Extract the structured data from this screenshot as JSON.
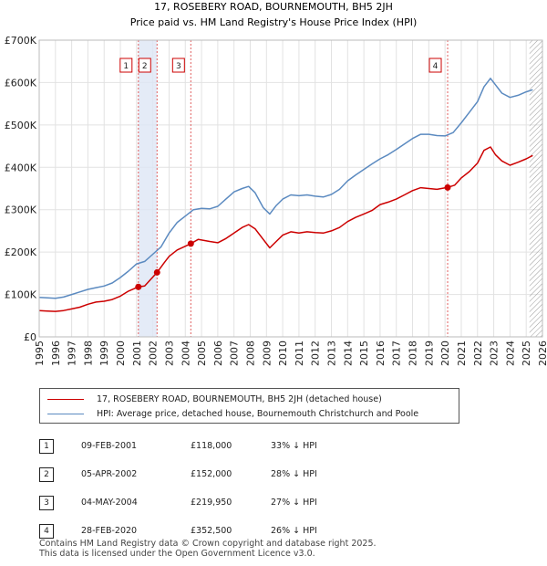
{
  "chart_data": {
    "type": "line",
    "title": "17, ROSEBERY ROAD, BOURNEMOUTH, BH5 2JH",
    "subtitle": "Price paid vs. HM Land Registry's House Price Index (HPI)",
    "xlim": [
      1995,
      2026
    ],
    "ylim": [
      0,
      700000
    ],
    "y_ticks": [
      {
        "value": 0,
        "label": "£0"
      },
      {
        "value": 100000,
        "label": "£100K"
      },
      {
        "value": 200000,
        "label": "£200K"
      },
      {
        "value": 300000,
        "label": "£300K"
      },
      {
        "value": 400000,
        "label": "£400K"
      },
      {
        "value": 500000,
        "label": "£500K"
      },
      {
        "value": 600000,
        "label": "£600K"
      },
      {
        "value": 700000,
        "label": "£700K"
      }
    ],
    "x_ticks": [
      "1995",
      "1996",
      "1997",
      "1998",
      "1999",
      "2000",
      "2001",
      "2002",
      "2003",
      "2004",
      "2005",
      "2006",
      "2007",
      "2008",
      "2009",
      "2010",
      "2011",
      "2012",
      "2013",
      "2014",
      "2015",
      "2016",
      "2017",
      "2018",
      "2019",
      "2020",
      "2021",
      "2022",
      "2023",
      "2024",
      "2025",
      "2026"
    ],
    "series": [
      {
        "name": "17, ROSEBERY ROAD, BOURNEMOUTH, BH5 2JH (detached house)",
        "color": "#cc0000",
        "points": [
          [
            1995,
            62000
          ],
          [
            1995.5,
            61000
          ],
          [
            1996,
            60000
          ],
          [
            1996.5,
            62000
          ],
          [
            1997,
            66000
          ],
          [
            1997.5,
            70000
          ],
          [
            1998,
            77000
          ],
          [
            1998.5,
            82000
          ],
          [
            1999,
            84000
          ],
          [
            1999.5,
            88000
          ],
          [
            2000,
            96000
          ],
          [
            2000.5,
            108000
          ],
          [
            2001.11,
            118000
          ],
          [
            2001.5,
            120000
          ],
          [
            2002.26,
            152000
          ],
          [
            2002.7,
            175000
          ],
          [
            2003,
            190000
          ],
          [
            2003.5,
            205000
          ],
          [
            2004.34,
            219950
          ],
          [
            2004.8,
            230000
          ],
          [
            2005.5,
            225000
          ],
          [
            2006,
            222000
          ],
          [
            2006.5,
            232000
          ],
          [
            2007,
            245000
          ],
          [
            2007.5,
            258000
          ],
          [
            2007.9,
            265000
          ],
          [
            2008.3,
            255000
          ],
          [
            2008.8,
            230000
          ],
          [
            2009.2,
            210000
          ],
          [
            2009.6,
            225000
          ],
          [
            2010,
            240000
          ],
          [
            2010.5,
            248000
          ],
          [
            2011,
            245000
          ],
          [
            2011.5,
            248000
          ],
          [
            2012,
            246000
          ],
          [
            2012.5,
            245000
          ],
          [
            2013,
            250000
          ],
          [
            2013.5,
            258000
          ],
          [
            2014,
            272000
          ],
          [
            2014.5,
            282000
          ],
          [
            2015,
            290000
          ],
          [
            2015.5,
            298000
          ],
          [
            2016,
            312000
          ],
          [
            2016.5,
            318000
          ],
          [
            2017,
            325000
          ],
          [
            2017.5,
            335000
          ],
          [
            2018,
            345000
          ],
          [
            2018.5,
            352000
          ],
          [
            2019,
            350000
          ],
          [
            2019.5,
            348000
          ],
          [
            2020.16,
            352500
          ],
          [
            2020.6,
            358000
          ],
          [
            2021,
            375000
          ],
          [
            2021.5,
            390000
          ],
          [
            2022,
            410000
          ],
          [
            2022.4,
            440000
          ],
          [
            2022.8,
            448000
          ],
          [
            2023.1,
            430000
          ],
          [
            2023.5,
            415000
          ],
          [
            2024,
            405000
          ],
          [
            2024.5,
            412000
          ],
          [
            2025,
            420000
          ],
          [
            2025.4,
            428000
          ]
        ]
      },
      {
        "name": "HPI: Average price, detached house, Bournemouth Christchurch and Poole",
        "color": "#5b8ac0",
        "points": [
          [
            1995,
            93000
          ],
          [
            1995.5,
            92000
          ],
          [
            1996,
            91000
          ],
          [
            1996.5,
            94000
          ],
          [
            1997,
            100000
          ],
          [
            1997.5,
            106000
          ],
          [
            1998,
            112000
          ],
          [
            1998.5,
            116000
          ],
          [
            1999,
            120000
          ],
          [
            1999.5,
            127000
          ],
          [
            2000,
            140000
          ],
          [
            2000.5,
            155000
          ],
          [
            2001,
            172000
          ],
          [
            2001.5,
            178000
          ],
          [
            2002,
            195000
          ],
          [
            2002.5,
            212000
          ],
          [
            2003,
            245000
          ],
          [
            2003.5,
            270000
          ],
          [
            2004,
            285000
          ],
          [
            2004.5,
            300000
          ],
          [
            2005,
            303000
          ],
          [
            2005.5,
            302000
          ],
          [
            2006,
            308000
          ],
          [
            2006.5,
            325000
          ],
          [
            2007,
            342000
          ],
          [
            2007.5,
            350000
          ],
          [
            2007.9,
            355000
          ],
          [
            2008.3,
            340000
          ],
          [
            2008.8,
            305000
          ],
          [
            2009.2,
            290000
          ],
          [
            2009.6,
            310000
          ],
          [
            2010,
            325000
          ],
          [
            2010.5,
            335000
          ],
          [
            2011,
            333000
          ],
          [
            2011.5,
            335000
          ],
          [
            2012,
            332000
          ],
          [
            2012.5,
            330000
          ],
          [
            2013,
            336000
          ],
          [
            2013.5,
            348000
          ],
          [
            2014,
            368000
          ],
          [
            2014.5,
            382000
          ],
          [
            2015,
            395000
          ],
          [
            2015.5,
            408000
          ],
          [
            2016,
            420000
          ],
          [
            2016.5,
            430000
          ],
          [
            2017,
            442000
          ],
          [
            2017.5,
            455000
          ],
          [
            2018,
            468000
          ],
          [
            2018.5,
            478000
          ],
          [
            2019,
            478000
          ],
          [
            2019.5,
            475000
          ],
          [
            2020,
            474000
          ],
          [
            2020.5,
            482000
          ],
          [
            2021,
            505000
          ],
          [
            2021.5,
            530000
          ],
          [
            2022,
            555000
          ],
          [
            2022.4,
            590000
          ],
          [
            2022.8,
            610000
          ],
          [
            2023.1,
            595000
          ],
          [
            2023.5,
            575000
          ],
          [
            2024,
            565000
          ],
          [
            2024.5,
            570000
          ],
          [
            2025,
            578000
          ],
          [
            2025.4,
            583000
          ]
        ]
      }
    ],
    "sales": [
      {
        "num": "1",
        "date": "09-FEB-2001",
        "price": "£118,000",
        "hpi": "33% ↓ HPI",
        "x": 2001.11,
        "y": 118000
      },
      {
        "num": "2",
        "date": "05-APR-2002",
        "price": "£152,000",
        "hpi": "28% ↓ HPI",
        "x": 2002.26,
        "y": 152000
      },
      {
        "num": "3",
        "date": "04-MAY-2004",
        "price": "£219,950",
        "hpi": "27% ↓ HPI",
        "x": 2004.34,
        "y": 219950
      },
      {
        "num": "4",
        "date": "28-FEB-2020",
        "price": "£352,500",
        "hpi": "26% ↓ HPI",
        "x": 2020.16,
        "y": 352500
      }
    ],
    "shaded_periods": [
      [
        2001.11,
        2002.26
      ]
    ],
    "hatched_from": 2025.2
  },
  "footer": {
    "line1": "Contains HM Land Registry data © Crown copyright and database right 2025.",
    "line2": "This data is licensed under the Open Government Licence v3.0."
  }
}
